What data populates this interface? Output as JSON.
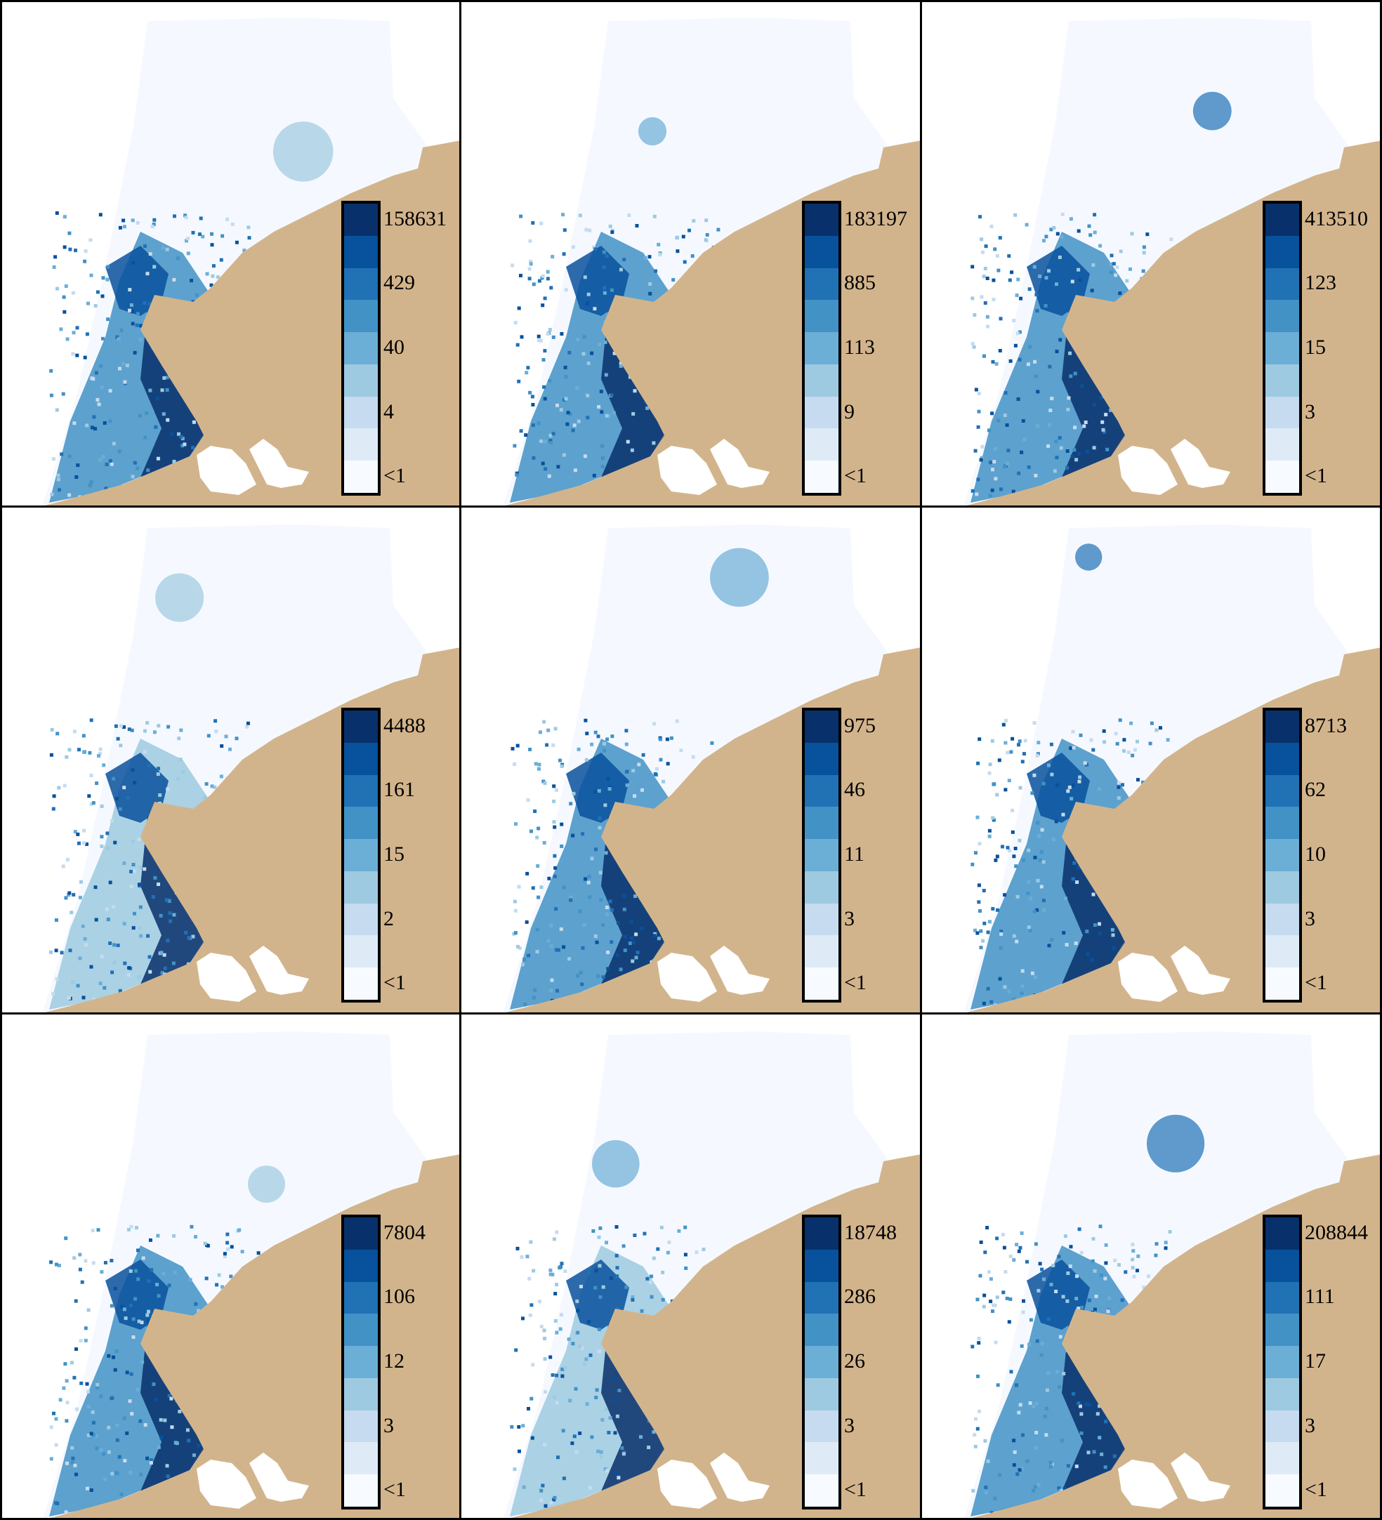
{
  "colors": {
    "land": "#D2B48C",
    "sea_empty": "#F5F9FF",
    "frame": "#000000",
    "ramp": [
      "#F7FBFF",
      "#DEEBF7",
      "#C6DBEF",
      "#9ECAE1",
      "#6BAED6",
      "#4292C6",
      "#2171B5",
      "#08519C",
      "#08306B"
    ]
  },
  "panels": [
    {
      "legend": {
        "labels": [
          "158631",
          "429",
          "40",
          "4",
          "<1"
        ]
      }
    },
    {
      "legend": {
        "labels": [
          "183197",
          "885",
          "113",
          "9",
          "<1"
        ]
      }
    },
    {
      "legend": {
        "labels": [
          "413510",
          "123",
          "15",
          "3",
          "<1"
        ]
      }
    },
    {
      "legend": {
        "labels": [
          "4488",
          "161",
          "15",
          "2",
          "<1"
        ]
      }
    },
    {
      "legend": {
        "labels": [
          "975",
          "46",
          "11",
          "3",
          "<1"
        ]
      }
    },
    {
      "legend": {
        "labels": [
          "8713",
          "62",
          "10",
          "3",
          "<1"
        ]
      }
    },
    {
      "legend": {
        "labels": [
          "7804",
          "106",
          "12",
          "3",
          "<1"
        ]
      }
    },
    {
      "legend": {
        "labels": [
          "18748",
          "286",
          "26",
          "3",
          "<1"
        ]
      }
    },
    {
      "legend": {
        "labels": [
          "208844",
          "111",
          "17",
          "3",
          "<1"
        ]
      }
    }
  ]
}
